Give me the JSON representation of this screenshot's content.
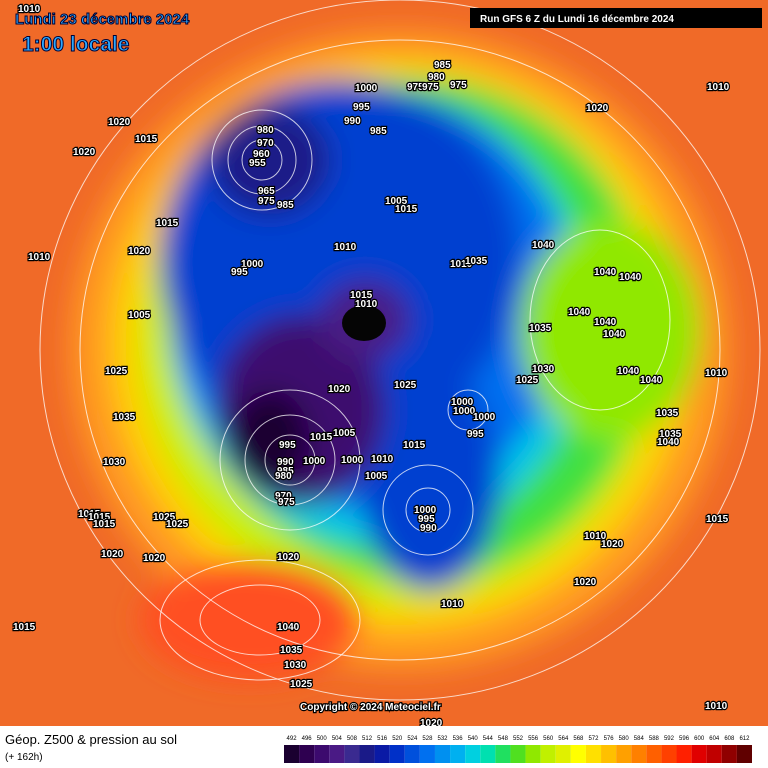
{
  "header": {
    "date": "Lundi 23 décembre 2024",
    "time": "1:00 locale",
    "run": "Run GFS 6 Z du Lundi 16 décembre 2024"
  },
  "map": {
    "pressure_labels": [
      1010,
      1020,
      1015,
      1020,
      1010,
      1000,
      995,
      1015,
      1020,
      1005,
      1025,
      1035,
      1030,
      1015,
      1015,
      1015,
      1025,
      1025,
      1020,
      1020,
      1015,
      1020,
      1040,
      1035,
      1030,
      1025,
      1020,
      1010,
      1015,
      1020,
      1010,
      1020,
      1010,
      1000,
      995,
      990,
      1015,
      1005,
      1010,
      1000,
      1005,
      1015,
      1000,
      995,
      990,
      985,
      980,
      970,
      975,
      1020,
      1025,
      1000,
      1000,
      1000,
      995,
      1015,
      1010,
      1010,
      1005,
      1015,
      1010,
      1035,
      1040,
      1040,
      1040,
      1040,
      1040,
      1040,
      1035,
      1030,
      1025,
      1040,
      1040,
      1010,
      1035,
      1035,
      1040,
      1020,
      1010,
      985,
      980,
      975,
      975,
      975,
      1000,
      995,
      990,
      985,
      980,
      970,
      960,
      955,
      965,
      975,
      985
    ],
    "copyright": "Copyright © 2024 Meteociel.fr"
  },
  "legend": {
    "title": "Géop. Z500 & pression au sol",
    "subtitle": "(+ 162h)",
    "scale": [
      492,
      496,
      500,
      504,
      508,
      512,
      516,
      520,
      524,
      528,
      532,
      536,
      540,
      544,
      548,
      552,
      556,
      560,
      564,
      568,
      572,
      576,
      580,
      584,
      588,
      592,
      596,
      600,
      604,
      608,
      612
    ],
    "colors": [
      "#1a0030",
      "#2e0050",
      "#3c0a6e",
      "#4a1a85",
      "#3a2a90",
      "#1a1a88",
      "#0a1aa5",
      "#0030c8",
      "#0050dc",
      "#0070f0",
      "#0090f0",
      "#00b0f0",
      "#00d0e0",
      "#00e0b0",
      "#20e060",
      "#50e020",
      "#90e800",
      "#c0f000",
      "#e0f000",
      "#ffff00",
      "#ffe000",
      "#ffc000",
      "#ffa000",
      "#ff8000",
      "#ff6000",
      "#ff4000",
      "#ff2000",
      "#e00000",
      "#c00000",
      "#900000",
      "#600000"
    ]
  }
}
